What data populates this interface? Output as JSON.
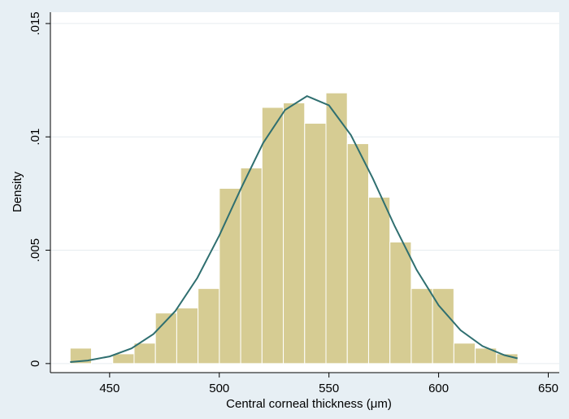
{
  "chart_data": {
    "type": "histogram",
    "xlabel": "Central corneal thickness (μm)",
    "ylabel": "Density",
    "bins": [
      432,
      441.72,
      451.44,
      461.16,
      470.88,
      480.6,
      490.32,
      500.04,
      509.76,
      519.48,
      529.2,
      538.92,
      548.64,
      558.36,
      568.08,
      577.8,
      587.52,
      597.24,
      606.96,
      616.68,
      626.4,
      636.12
    ],
    "values": [
      0.00068,
      0,
      0.00043,
      0.0009,
      0.00223,
      0.00245,
      0.00331,
      0.00773,
      0.00863,
      0.0113,
      0.0115,
      0.0106,
      0.01194,
      0.0097,
      0.00734,
      0.00536,
      0.00331,
      0.00331,
      0.0009,
      0.00068,
      0.00043
    ],
    "color": "#d6cc93",
    "line": {
      "color": "#2f6f70",
      "x": [
        432,
        440,
        450,
        460,
        470,
        480,
        490,
        500,
        510,
        520,
        530,
        540,
        550,
        560,
        570,
        580,
        590,
        600,
        610,
        620,
        630,
        636
      ],
      "values": [
        6.5e-05,
        0.000136,
        0.000315,
        0.000668,
        0.0013,
        0.00232,
        0.00378,
        0.00565,
        0.00775,
        0.00973,
        0.01119,
        0.0118,
        0.01139,
        0.01008,
        0.00817,
        0.00606,
        0.00413,
        0.00257,
        0.00147,
        0.00077,
        0.00037,
        0.000227
      ]
    },
    "xlim": [
      423,
      655
    ],
    "ylim": [
      -0.0004,
      0.0155
    ],
    "xticks": [
      450,
      500,
      550,
      600,
      650
    ],
    "yticks": [
      0,
      {
        "value": 0.005,
        "label": ".005"
      },
      {
        "value": 0.01,
        "label": ".01"
      },
      {
        "value": 0.015,
        "label": ".015"
      }
    ],
    "grid": true
  }
}
